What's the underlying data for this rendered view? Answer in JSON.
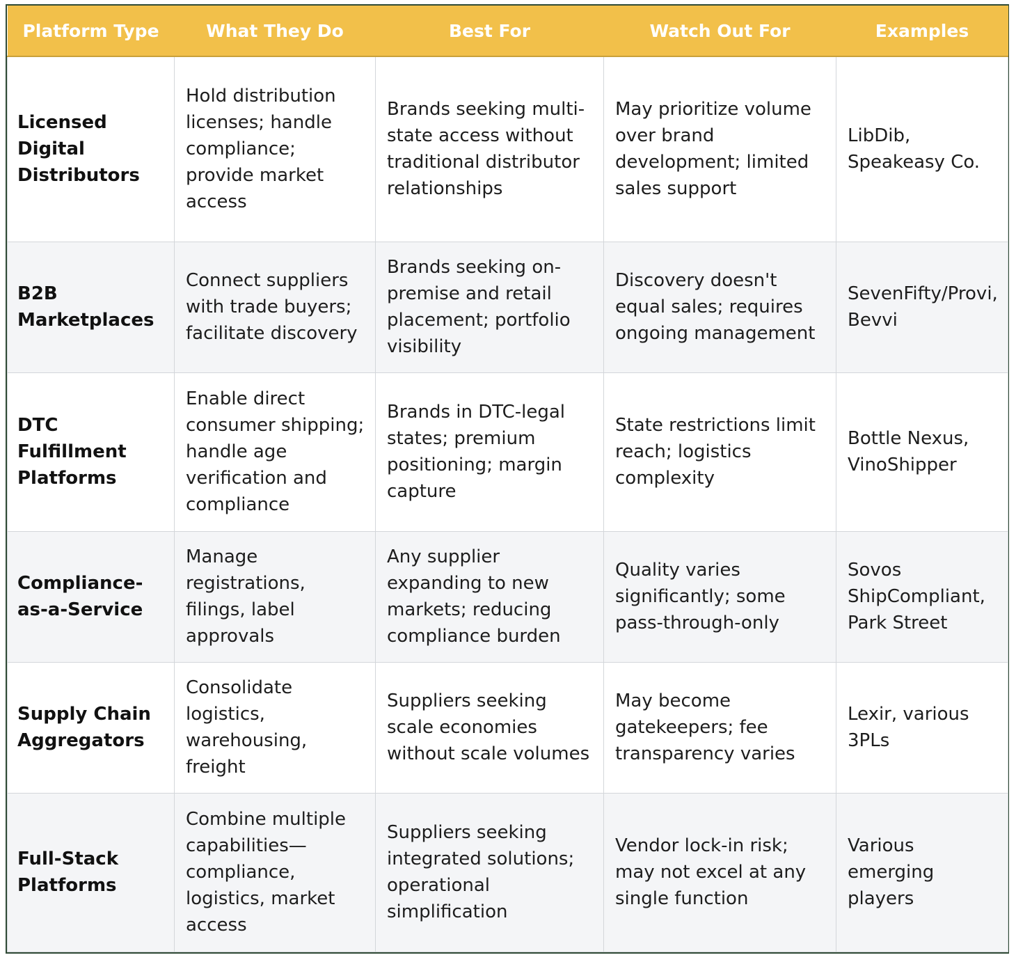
{
  "table": {
    "columns": [
      "Platform Type",
      "What They Do",
      "Best For",
      "Watch Out For",
      "Examples"
    ],
    "rows": [
      [
        "Licensed Digital Distributors",
        "Hold distribution licenses; handle compliance; provide market access",
        "Brands seeking multi-state access without traditional distributor relationships",
        "May prioritize volume over brand development; limited sales support",
        "LibDib, Speakeasy Co."
      ],
      [
        "B2B Marketplaces",
        "Connect suppliers with trade buyers; facilitate discovery",
        "Brands seeking on-premise and retail placement; portfolio visibility",
        "Discovery doesn't equal sales; requires ongoing management",
        "SevenFifty/Provi, Bevvi"
      ],
      [
        "DTC Fulfillment Platforms",
        "Enable direct consumer shipping; handle age verification and compliance",
        "Brands in DTC-legal states; premium positioning; margin capture",
        "State restrictions limit reach; logistics complexity",
        "Bottle Nexus, VinoShipper"
      ],
      [
        "Compliance-as-a-Service",
        "Manage registrations, filings, label approvals",
        "Any supplier expanding to new markets; reducing compliance burden",
        "Quality varies significantly; some pass-through-only",
        "Sovos ShipCompliant, Park Street"
      ],
      [
        "Supply Chain Aggregators",
        "Consolidate logistics, warehousing, freight",
        "Suppliers seeking scale economies without scale volumes",
        "May become gatekeepers; fee transparency varies",
        "Lexir, various 3PLs"
      ],
      [
        "Full-Stack Platforms",
        "Combine multiple capabilities—compliance, logistics, market access",
        "Suppliers seeking integrated solutions; operational simplification",
        "Vendor lock-in risk; may not excel at any single function",
        "Various emerging players"
      ]
    ]
  }
}
